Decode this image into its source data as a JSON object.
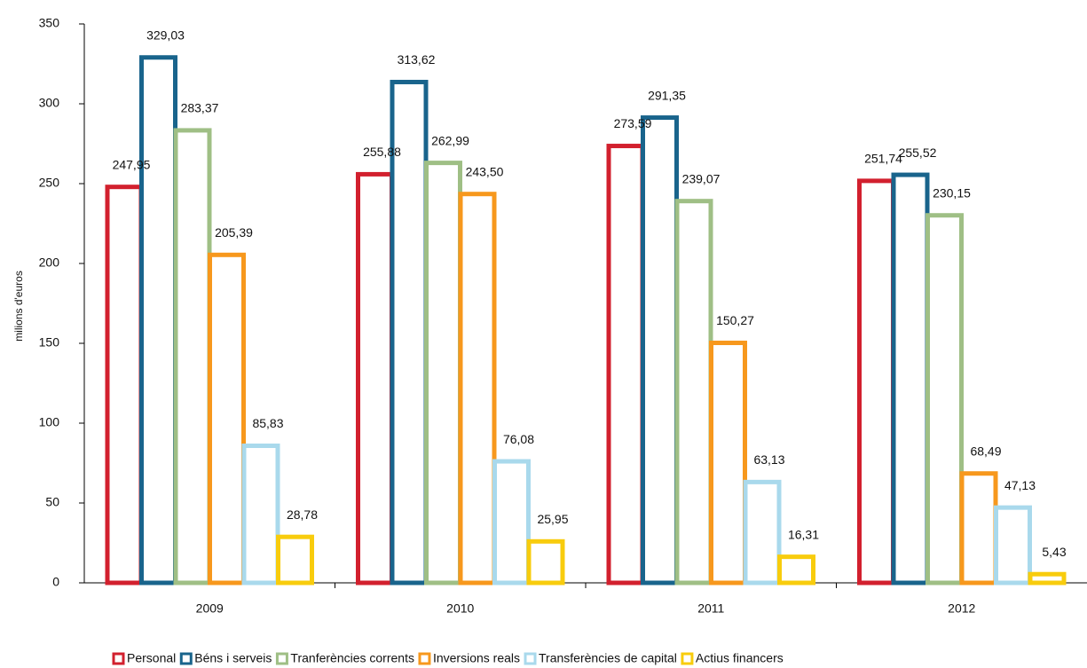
{
  "chart_data": {
    "type": "bar",
    "y_label": "milions d'euros",
    "categories": [
      "2009",
      "2010",
      "2011",
      "2012"
    ],
    "ylim": [
      0,
      350
    ],
    "yticks": [
      0,
      50,
      100,
      150,
      200,
      250,
      300,
      350
    ],
    "legend": "bottom",
    "series": [
      {
        "name": "Personal",
        "color": "#d2202e",
        "values": [
          247.95,
          255.88,
          273.59,
          251.74
        ],
        "value_labels": [
          "247,95",
          "255,88",
          "273,59",
          "251,74"
        ]
      },
      {
        "name": "Béns i serveis",
        "color": "#19648c",
        "values": [
          329.03,
          313.62,
          291.35,
          255.52
        ],
        "value_labels": [
          "329,03",
          "313,62",
          "291,35",
          "255,52"
        ]
      },
      {
        "name": "Tranferències corrents",
        "color": "#9fbf85",
        "values": [
          283.37,
          262.99,
          239.07,
          230.15
        ],
        "value_labels": [
          "283,37",
          "262,99",
          "239,07",
          "230,15"
        ]
      },
      {
        "name": "Inversions reals",
        "color": "#f7981d",
        "values": [
          205.39,
          243.5,
          150.27,
          68.49
        ],
        "value_labels": [
          "205,39",
          "243,50",
          "150,27",
          "68,49"
        ]
      },
      {
        "name": "Transferències de capital",
        "color": "#a9d9ec",
        "values": [
          85.83,
          76.08,
          63.13,
          47.13
        ],
        "value_labels": [
          "85,83",
          "76,08",
          "63,13",
          "47,13"
        ]
      },
      {
        "name": "Actius financers",
        "color": "#f8cc0d",
        "values": [
          28.78,
          25.95,
          16.31,
          5.43
        ],
        "value_labels": [
          "28,78",
          "25,95",
          "16,31",
          "5,43"
        ]
      }
    ]
  }
}
